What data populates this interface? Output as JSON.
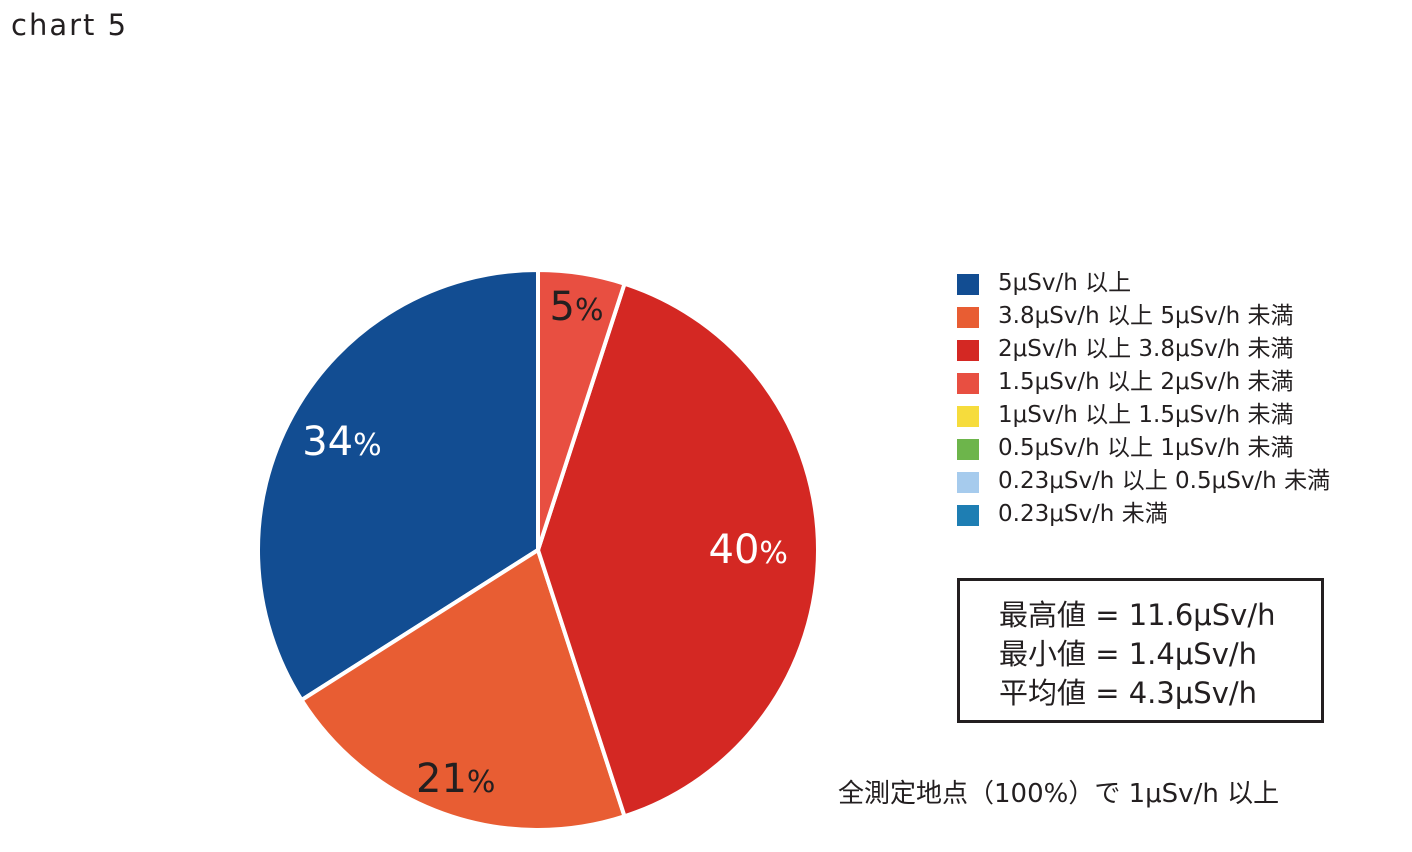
{
  "chart_label": "chart 5",
  "chart_data": {
    "type": "pie",
    "slices": [
      {
        "label": "5μSv/h 以上",
        "value": 34,
        "color": "#124d92",
        "value_text": "34",
        "pct_sign": "%",
        "label_color": "#ffffff"
      },
      {
        "label": "3.8μSv/h 以上 5μSv/h 未満",
        "value": 21,
        "color": "#e85d33",
        "value_text": "21",
        "pct_sign": "%",
        "label_color": "#231f20"
      },
      {
        "label": "2μSv/h 以上 3.8μSv/h 未満",
        "value": 40,
        "color": "#d42823",
        "value_text": "40",
        "pct_sign": "%",
        "label_color": "#ffffff"
      },
      {
        "label": "1.5μSv/h 以上 2μSv/h 未満",
        "value": 5,
        "color": "#e84f41",
        "value_text": "5",
        "pct_sign": "%",
        "label_color": "#231f20"
      },
      {
        "label": "1μSv/h 以上 1.5μSv/h 未満",
        "value": 0,
        "color": "#f6dc3c"
      },
      {
        "label": "0.5μSv/h 以上 1μSv/h 未満",
        "value": 0,
        "color": "#6db54b"
      },
      {
        "label": "0.23μSv/h 以上 0.5μSv/h 未満",
        "value": 0,
        "color": "#a6cbed"
      },
      {
        "label": "0.23μSv/h 未満",
        "value": 0,
        "color": "#1e7eb3"
      }
    ],
    "legend_position": "right"
  },
  "stats": [
    "最高値 = 11.6μSv/h",
    "最小値 = 1.4μSv/h",
    "平均値 = 4.3μSv/h"
  ],
  "note": "全測定地点（100%）で 1μSv/h 以上"
}
